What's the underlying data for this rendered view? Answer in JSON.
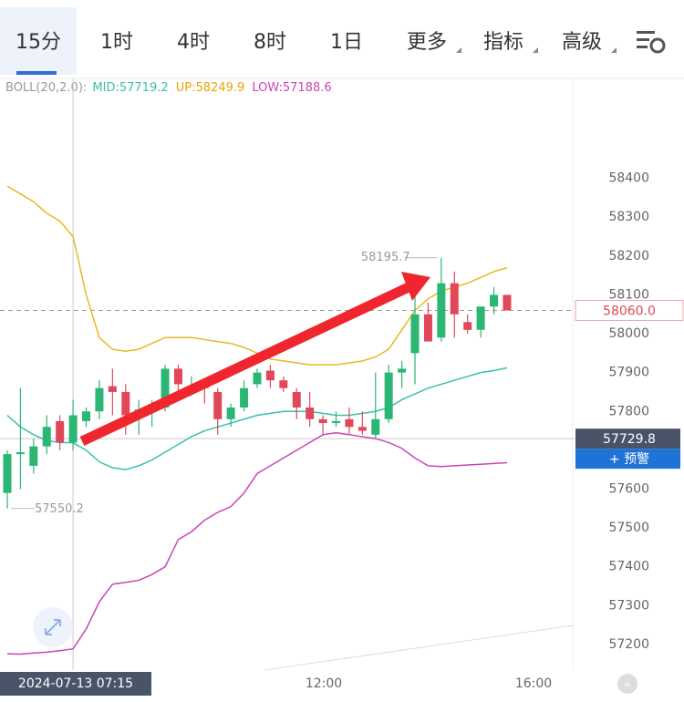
{
  "tabs": [
    "15分",
    "1时",
    "4时",
    "8时",
    "1日",
    "更多",
    "指标",
    "高级"
  ],
  "indicator": {
    "name": "BOLL(20,2.0):",
    "mid": "MID:57719.2",
    "up": "UP:58249.9",
    "low": "LOW:57188.6"
  },
  "chart_data": {
    "type": "candlestick",
    "ylim": [
      57134,
      58601
    ],
    "yticks": [
      58400,
      58300,
      58200,
      58100,
      58000,
      57900,
      57800,
      57600,
      57500,
      57400,
      57300,
      57200
    ],
    "up_color": "#2bb673",
    "down_color": "#e0485a",
    "open": [
      57590,
      57690,
      57660,
      57710,
      57775,
      57720,
      57775,
      57800,
      57865,
      57850,
      57790,
      57800,
      57810,
      57910,
      57850,
      57865,
      57850,
      57780,
      57810,
      57870,
      57905,
      57880,
      57850,
      57810,
      57780,
      57770,
      57780,
      57760,
      57740,
      57780,
      57900,
      57950,
      58050,
      57990,
      58130,
      58030,
      58010,
      58070,
      58100
    ],
    "high": [
      57700,
      57860,
      57730,
      57790,
      57790,
      57830,
      57810,
      57880,
      57910,
      57870,
      57830,
      57830,
      57920,
      57920,
      57890,
      57880,
      57860,
      57820,
      57880,
      57910,
      57920,
      57890,
      57860,
      57850,
      57790,
      57800,
      57810,
      57800,
      57900,
      57920,
      57930,
      58100,
      58080,
      58195.7,
      58160,
      58050,
      58070,
      58120,
      58100
    ],
    "low": [
      57550.2,
      57600,
      57640,
      57690,
      57700,
      57700,
      57760,
      57780,
      57790,
      57740,
      57740,
      57760,
      57800,
      57840,
      57840,
      57820,
      57740,
      57760,
      57800,
      57860,
      57860,
      57850,
      57780,
      57760,
      57740,
      57760,
      57740,
      57740,
      57730,
      57770,
      57860,
      57870,
      57980,
      57980,
      57990,
      58000,
      57990,
      58050,
      58060
    ],
    "close": [
      57690,
      57695,
      57710,
      57760,
      57720,
      57790,
      57800,
      57860,
      57850,
      57790,
      57805,
      57810,
      57910,
      57870,
      57865,
      57860,
      57780,
      57810,
      57860,
      57900,
      57880,
      57860,
      57810,
      57780,
      57770,
      57775,
      57760,
      57750,
      57780,
      57900,
      57910,
      58050,
      57980,
      58130,
      58050,
      58010,
      58070,
      58100,
      58060
    ],
    "series": [
      {
        "name": "UP",
        "color": "#e8b923",
        "values": [
          58380,
          58360,
          58340,
          58310,
          58290,
          58249.9,
          58100,
          57990,
          57960,
          57955,
          57960,
          57975,
          57990,
          57990,
          57990,
          57985,
          57980,
          57975,
          57965,
          57950,
          57935,
          57930,
          57925,
          57920,
          57920,
          57920,
          57925,
          57930,
          57940,
          57960,
          58010,
          58060,
          58090,
          58110,
          58120,
          58130,
          58145,
          58160,
          58170
        ]
      },
      {
        "name": "MID",
        "color": "#3bbfad",
        "values": [
          57790,
          57760,
          57740,
          57725,
          57720,
          57719.2,
          57700,
          57670,
          57655,
          57650,
          57660,
          57675,
          57695,
          57715,
          57735,
          57750,
          57760,
          57770,
          57780,
          57790,
          57795,
          57800,
          57800,
          57800,
          57795,
          57790,
          57790,
          57795,
          57800,
          57810,
          57830,
          57845,
          57860,
          57870,
          57880,
          57890,
          57900,
          57905,
          57912
        ]
      },
      {
        "name": "LOW",
        "color": "#c946b5",
        "values": [
          57176,
          57175,
          57178,
          57180,
          57184,
          57188.6,
          57240,
          57310,
          57355,
          57360,
          57365,
          57380,
          57400,
          57470,
          57490,
          57520,
          57540,
          57555,
          57590,
          57640,
          57660,
          57680,
          57700,
          57720,
          57740,
          57745,
          57740,
          57735,
          57730,
          57720,
          57705,
          57680,
          57660,
          57658,
          57660,
          57662,
          57664,
          57666,
          57668
        ]
      }
    ],
    "high_label": 58195.7,
    "low_label": 57550.2,
    "last_price": {
      "value": 58060,
      "label": "58060.0"
    },
    "crosshair_price": 57729.8,
    "crosshair_time": "2024-07-13 07:15",
    "alert_button": "+ 预警",
    "x_labels": [
      "12:00",
      "16:00"
    ]
  }
}
